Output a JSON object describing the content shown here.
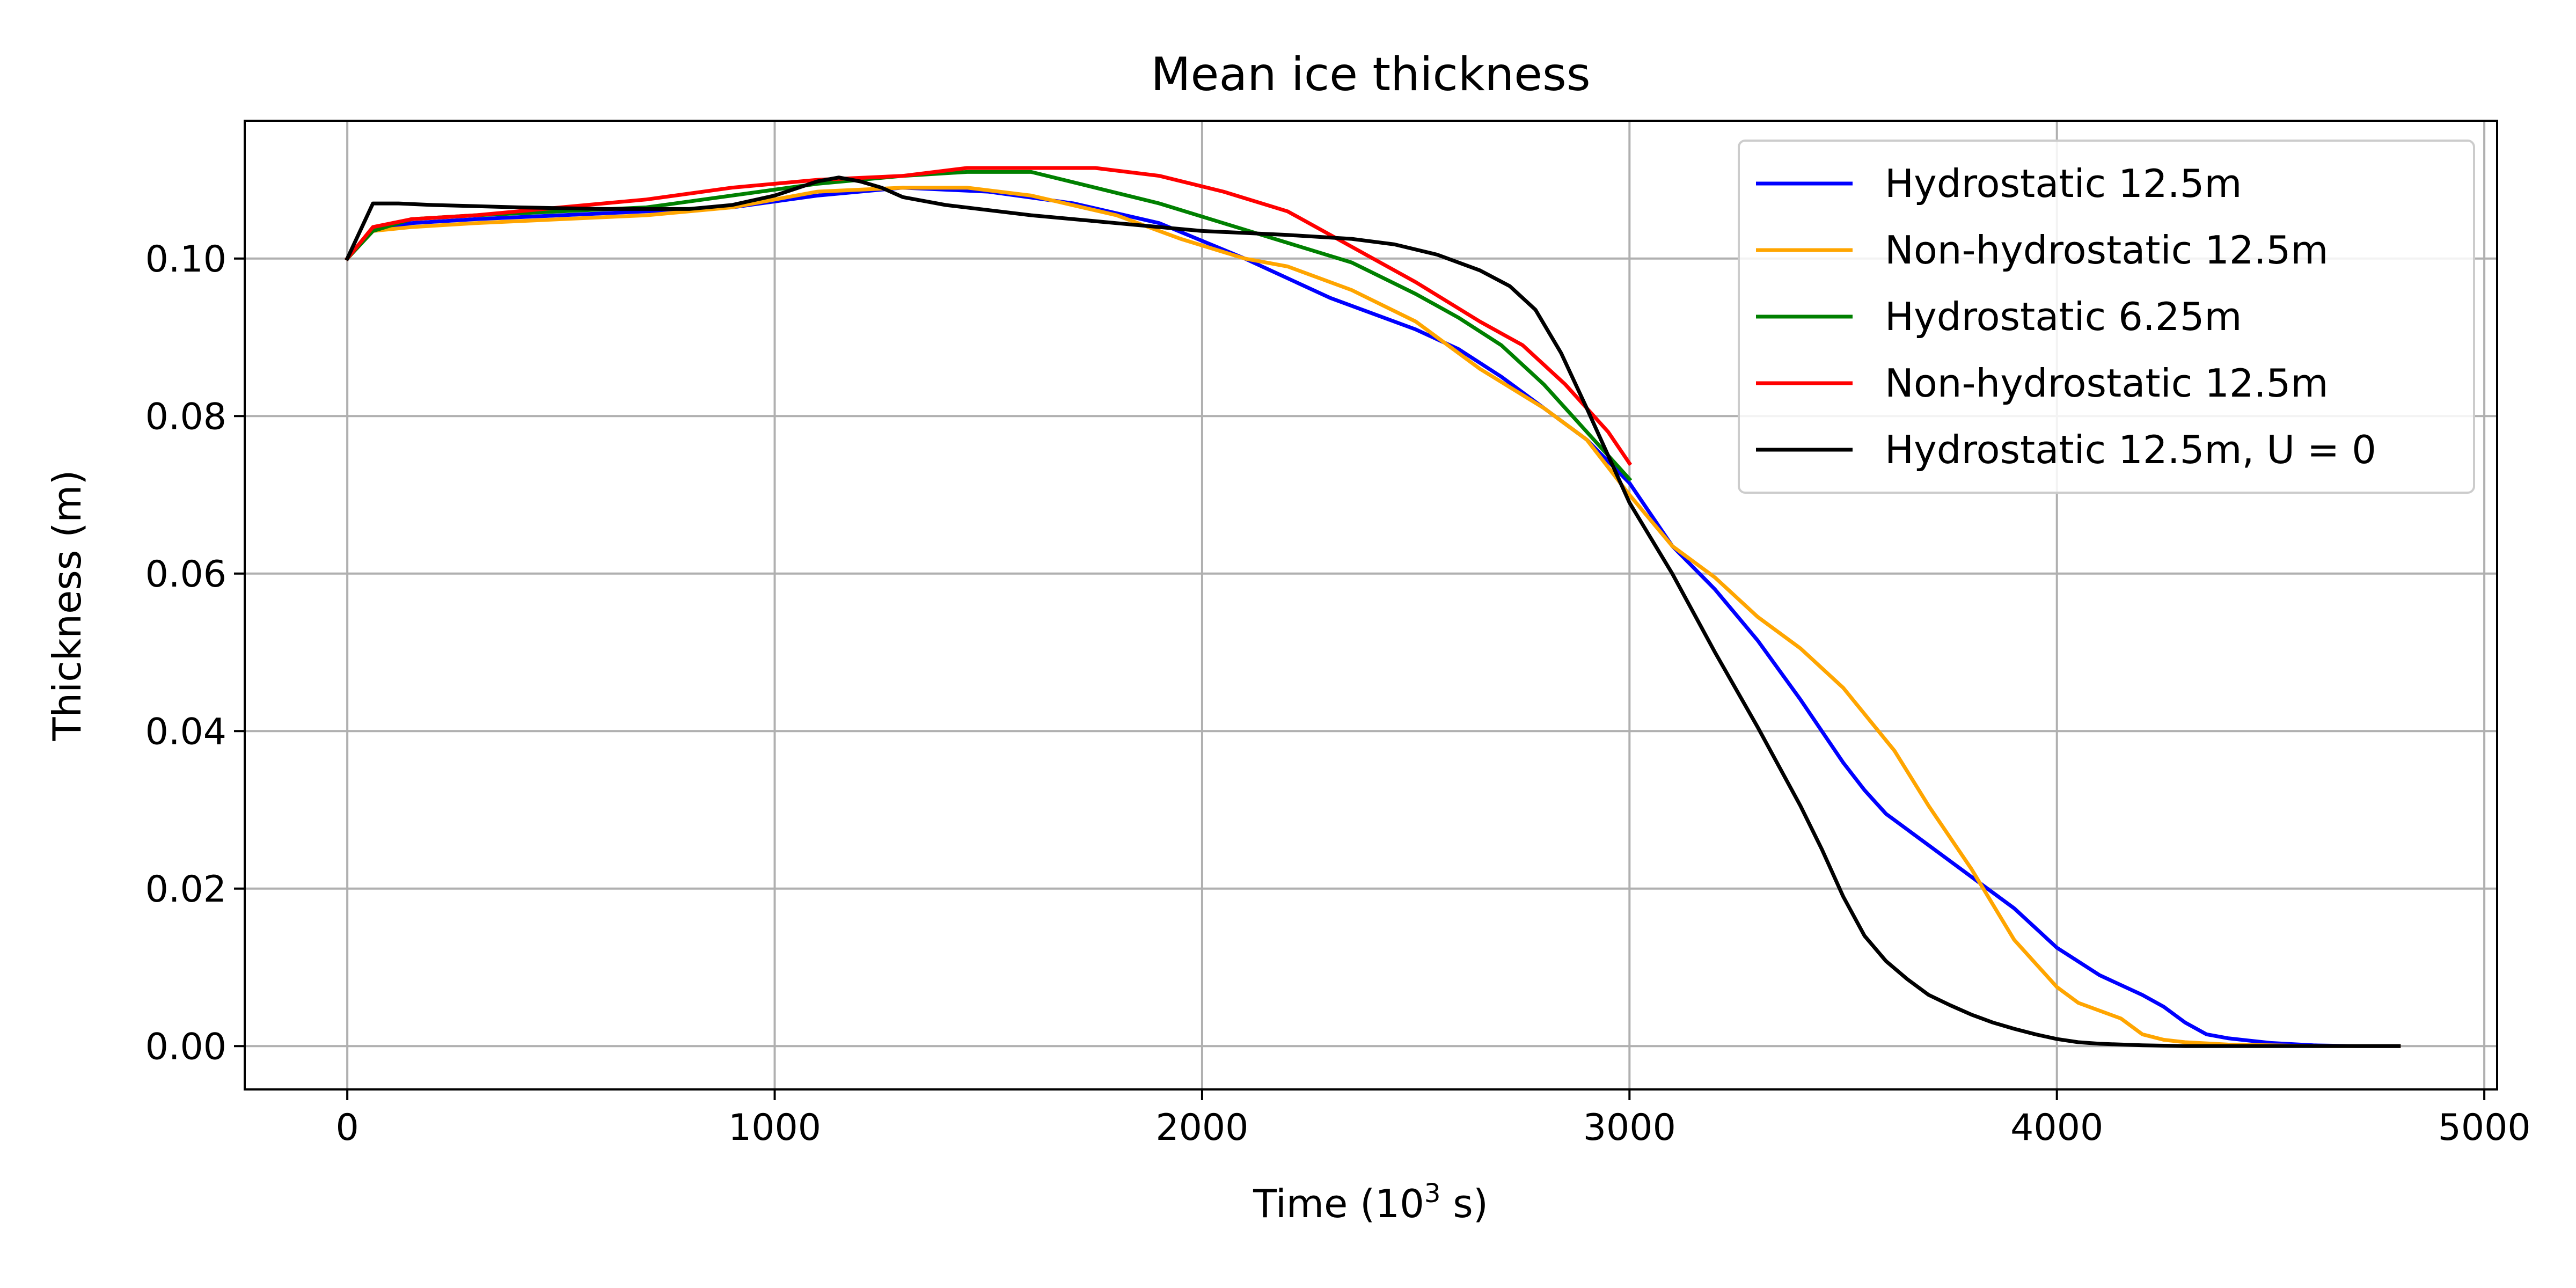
{
  "chart_data": {
    "type": "line",
    "title": "Mean ice thickness",
    "xlabel_prefix": "Time (10",
    "xlabel_sup": "3",
    "xlabel_suffix": " s)",
    "ylabel": "Thickness (m)",
    "xlim": [
      -240,
      5030
    ],
    "ylim": [
      -0.0055,
      0.1175
    ],
    "xticks": [
      0,
      1000,
      2000,
      3000,
      4000,
      5000
    ],
    "yticks": [
      0.0,
      0.02,
      0.04,
      0.06,
      0.08,
      0.1
    ],
    "xtick_labels": [
      "0",
      "1000",
      "2000",
      "3000",
      "4000",
      "5000"
    ],
    "ytick_labels": [
      "0.00",
      "0.02",
      "0.04",
      "0.06",
      "0.08",
      "0.10"
    ],
    "grid": true,
    "legend_position": "top-right",
    "series": [
      {
        "name": "Hydrostatic 12.5m",
        "color": "#0000ff",
        "x": [
          0,
          60,
          150,
          300,
          500,
          700,
          900,
          1100,
          1300,
          1500,
          1700,
          1900,
          2100,
          2300,
          2500,
          2600,
          2700,
          2800,
          2900,
          3000,
          3100,
          3200,
          3300,
          3400,
          3500,
          3550,
          3600,
          3700,
          3800,
          3900,
          4000,
          4100,
          4200,
          4250,
          4300,
          4350,
          4400,
          4500,
          4600,
          4700,
          4800
        ],
        "y": [
          0.1,
          0.1035,
          0.1045,
          0.105,
          0.1055,
          0.106,
          0.1065,
          0.108,
          0.109,
          0.1085,
          0.107,
          0.1045,
          0.1,
          0.095,
          0.091,
          0.0885,
          0.085,
          0.081,
          0.077,
          0.0715,
          0.0635,
          0.058,
          0.0515,
          0.044,
          0.036,
          0.0325,
          0.0295,
          0.0255,
          0.0215,
          0.0175,
          0.0125,
          0.009,
          0.0065,
          0.005,
          0.003,
          0.0015,
          0.001,
          0.0004,
          0.0001,
          0.0,
          0.0
        ]
      },
      {
        "name": "Non-hydrostatic 12.5m",
        "color": "#ffa500",
        "x": [
          0,
          60,
          150,
          300,
          500,
          700,
          900,
          1100,
          1300,
          1450,
          1600,
          1800,
          1950,
          2100,
          2200,
          2350,
          2500,
          2650,
          2800,
          2900,
          3000,
          3100,
          3200,
          3300,
          3400,
          3500,
          3560,
          3620,
          3700,
          3800,
          3900,
          4000,
          4050,
          4150,
          4200,
          4250,
          4300,
          4400,
          4500,
          4600,
          4800
        ],
        "y": [
          0.1,
          0.1035,
          0.104,
          0.1045,
          0.105,
          0.1055,
          0.1065,
          0.1085,
          0.109,
          0.109,
          0.108,
          0.1055,
          0.1025,
          0.1,
          0.099,
          0.096,
          0.092,
          0.086,
          0.081,
          0.077,
          0.07,
          0.0635,
          0.0595,
          0.0545,
          0.0505,
          0.0455,
          0.0415,
          0.0375,
          0.0305,
          0.0225,
          0.0135,
          0.0075,
          0.0055,
          0.0035,
          0.0015,
          0.0008,
          0.0005,
          0.0002,
          0.0001,
          0.0,
          0.0
        ]
      },
      {
        "name": "Hydrostatic 6.25m",
        "color": "#008000",
        "x": [
          0,
          60,
          150,
          300,
          500,
          700,
          900,
          1100,
          1300,
          1450,
          1600,
          1750,
          1900,
          2050,
          2200,
          2350,
          2500,
          2600,
          2700,
          2800,
          2900,
          2950,
          3000
        ],
        "y": [
          0.1,
          0.1035,
          0.105,
          0.1055,
          0.106,
          0.1065,
          0.108,
          0.1095,
          0.1105,
          0.111,
          0.111,
          0.109,
          0.107,
          0.1045,
          0.102,
          0.0995,
          0.0955,
          0.0925,
          0.089,
          0.084,
          0.078,
          0.075,
          0.072
        ]
      },
      {
        "name": "Non-hydrostatic 12.5m",
        "color": "#ff0000",
        "x": [
          0,
          60,
          150,
          300,
          500,
          700,
          900,
          1100,
          1300,
          1450,
          1600,
          1750,
          1900,
          2050,
          2200,
          2350,
          2500,
          2650,
          2750,
          2850,
          2950,
          3000
        ],
        "y": [
          0.1,
          0.104,
          0.105,
          0.1055,
          0.1065,
          0.1075,
          0.109,
          0.11,
          0.1105,
          0.1115,
          0.1115,
          0.1115,
          0.1105,
          0.1085,
          0.106,
          0.1015,
          0.097,
          0.092,
          0.089,
          0.084,
          0.078,
          0.074
        ]
      },
      {
        "name": "Hydrostatic 12.5m, U = 0",
        "color": "#000000",
        "x": [
          0,
          60,
          120,
          200,
          400,
          600,
          800,
          900,
          1000,
          1100,
          1150,
          1200,
          1250,
          1300,
          1400,
          1600,
          1800,
          2000,
          2200,
          2350,
          2450,
          2550,
          2650,
          2720,
          2780,
          2840,
          2900,
          2950,
          3000,
          3100,
          3200,
          3300,
          3400,
          3450,
          3500,
          3550,
          3600,
          3650,
          3700,
          3750,
          3800,
          3850,
          3900,
          3950,
          4000,
          4050,
          4100,
          4200,
          4300,
          4400,
          4800
        ],
        "y": [
          0.1,
          0.107,
          0.107,
          0.1068,
          0.1065,
          0.1063,
          0.1063,
          0.1068,
          0.108,
          0.1098,
          0.1103,
          0.1098,
          0.109,
          0.1078,
          0.1068,
          0.1055,
          0.1045,
          0.1035,
          0.103,
          0.1025,
          0.1018,
          0.1005,
          0.0985,
          0.0965,
          0.0935,
          0.088,
          0.081,
          0.075,
          0.069,
          0.06,
          0.05,
          0.0405,
          0.0305,
          0.025,
          0.019,
          0.014,
          0.0108,
          0.0085,
          0.0065,
          0.0052,
          0.004,
          0.003,
          0.0022,
          0.0015,
          0.0009,
          0.0005,
          0.0003,
          0.0001,
          0.0,
          0.0,
          0.0
        ]
      }
    ]
  }
}
